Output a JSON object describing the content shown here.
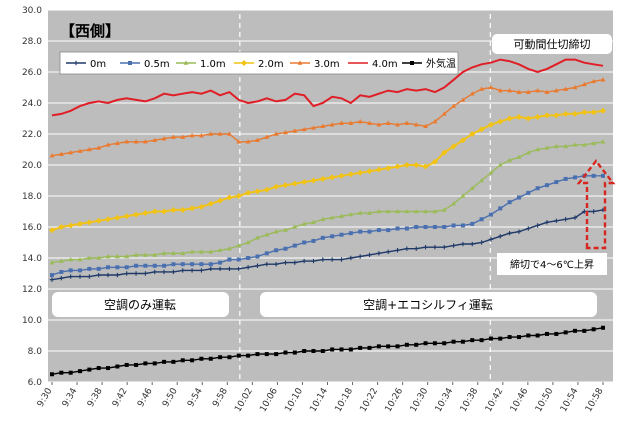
{
  "chart_data": {
    "type": "line",
    "title": "【西側】",
    "ylim": [
      6.0,
      30.0
    ],
    "y_ticks": [
      "6.0",
      "8.0",
      "10.0",
      "12.0",
      "14.0",
      "16.0",
      "18.0",
      "20.0",
      "22.0",
      "24.0",
      "26.0",
      "28.0",
      "30.0"
    ],
    "x_tick_labels": [
      "9:30",
      "9:34",
      "9:38",
      "9:42",
      "9:46",
      "9:50",
      "9:54",
      "9:58",
      "10:02",
      "10:06",
      "10:10",
      "10:14",
      "10:18",
      "10:22",
      "10:26",
      "10:30",
      "10:34",
      "10:38",
      "10:42",
      "10:46",
      "10:50",
      "10:54",
      "10:58"
    ],
    "grid": true,
    "legend_position": "top-left",
    "colors": {
      "plot_bg": "#bdbdbd",
      "panel_bg": "#ffffff",
      "grid": "#ffffff",
      "divider": "#ffffff",
      "callout_arrow": "#d7261e"
    },
    "series": [
      {
        "name": "0m",
        "color": "#1f3a68",
        "marker": "plus",
        "values": [
          12.6,
          12.7,
          12.8,
          12.8,
          12.8,
          12.9,
          12.9,
          12.9,
          13.0,
          13.0,
          13.0,
          13.1,
          13.1,
          13.1,
          13.2,
          13.2,
          13.2,
          13.3,
          13.3,
          13.3,
          13.3,
          13.4,
          13.5,
          13.6,
          13.6,
          13.7,
          13.7,
          13.8,
          13.8,
          13.9,
          13.9,
          13.9,
          14.0,
          14.1,
          14.2,
          14.3,
          14.4,
          14.5,
          14.6,
          14.6,
          14.7,
          14.7,
          14.7,
          14.8,
          14.9,
          14.9,
          15.0,
          15.2,
          15.4,
          15.6,
          15.7,
          15.9,
          16.1,
          16.3,
          16.4,
          16.5,
          16.6,
          17.0,
          17.0,
          17.1
        ]
      },
      {
        "name": "0.5m",
        "color": "#4a70b0",
        "marker": "square",
        "values": [
          12.9,
          13.1,
          13.2,
          13.2,
          13.3,
          13.3,
          13.4,
          13.4,
          13.4,
          13.5,
          13.5,
          13.5,
          13.5,
          13.6,
          13.6,
          13.6,
          13.6,
          13.6,
          13.7,
          13.9,
          13.9,
          14.0,
          14.1,
          14.3,
          14.5,
          14.6,
          14.8,
          15.0,
          15.1,
          15.3,
          15.4,
          15.5,
          15.6,
          15.7,
          15.7,
          15.8,
          15.8,
          15.9,
          15.9,
          16.0,
          16.0,
          16.0,
          16.0,
          16.1,
          16.1,
          16.2,
          16.5,
          16.8,
          17.2,
          17.6,
          17.9,
          18.2,
          18.5,
          18.7,
          18.9,
          19.1,
          19.2,
          19.3,
          19.3,
          19.3
        ]
      },
      {
        "name": "1.0m",
        "color": "#9bbb59",
        "marker": "triangle",
        "values": [
          13.7,
          13.8,
          13.9,
          13.9,
          14.0,
          14.0,
          14.1,
          14.1,
          14.1,
          14.2,
          14.2,
          14.2,
          14.3,
          14.3,
          14.3,
          14.4,
          14.4,
          14.4,
          14.5,
          14.6,
          14.8,
          15.0,
          15.3,
          15.5,
          15.7,
          15.8,
          16.0,
          16.2,
          16.3,
          16.5,
          16.6,
          16.7,
          16.8,
          16.9,
          16.9,
          17.0,
          17.0,
          17.0,
          17.0,
          17.0,
          17.0,
          17.0,
          17.1,
          17.5,
          18.0,
          18.5,
          19.0,
          19.5,
          20.0,
          20.3,
          20.5,
          20.8,
          21.0,
          21.1,
          21.2,
          21.2,
          21.3,
          21.3,
          21.4,
          21.5
        ]
      },
      {
        "name": "2.0m",
        "color": "#f2c314",
        "marker": "diamond",
        "values": [
          15.8,
          16.0,
          16.1,
          16.2,
          16.3,
          16.4,
          16.5,
          16.6,
          16.7,
          16.8,
          16.9,
          17.0,
          17.0,
          17.1,
          17.1,
          17.2,
          17.3,
          17.5,
          17.7,
          17.9,
          18.0,
          18.2,
          18.3,
          18.4,
          18.6,
          18.7,
          18.8,
          18.9,
          19.0,
          19.1,
          19.2,
          19.3,
          19.4,
          19.5,
          19.6,
          19.7,
          19.8,
          19.9,
          20.0,
          20.0,
          19.9,
          20.2,
          20.8,
          21.2,
          21.6,
          22.0,
          22.3,
          22.6,
          22.8,
          23.0,
          23.1,
          23.0,
          23.1,
          23.2,
          23.2,
          23.3,
          23.3,
          23.4,
          23.4,
          23.5
        ]
      },
      {
        "name": "3.0m",
        "color": "#e97a30",
        "marker": "triangle",
        "values": [
          20.6,
          20.7,
          20.8,
          20.9,
          21.0,
          21.1,
          21.3,
          21.4,
          21.5,
          21.5,
          21.5,
          21.6,
          21.7,
          21.8,
          21.8,
          21.9,
          21.9,
          22.0,
          22.0,
          22.0,
          21.5,
          21.5,
          21.6,
          21.8,
          22.0,
          22.1,
          22.2,
          22.3,
          22.4,
          22.5,
          22.6,
          22.7,
          22.7,
          22.8,
          22.7,
          22.6,
          22.7,
          22.6,
          22.7,
          22.6,
          22.5,
          22.8,
          23.3,
          23.8,
          24.2,
          24.6,
          24.9,
          25.0,
          24.8,
          24.8,
          24.7,
          24.7,
          24.8,
          24.7,
          24.8,
          24.9,
          25.0,
          25.2,
          25.4,
          25.5
        ]
      },
      {
        "name": "4.0m",
        "color": "#e01e26",
        "marker": "none",
        "values": [
          23.2,
          23.3,
          23.5,
          23.8,
          24.0,
          24.1,
          24.0,
          24.2,
          24.3,
          24.2,
          24.1,
          24.3,
          24.6,
          24.5,
          24.6,
          24.7,
          24.6,
          24.8,
          24.5,
          24.7,
          24.2,
          24.0,
          24.1,
          24.3,
          24.1,
          24.2,
          24.6,
          24.5,
          23.8,
          24.0,
          24.4,
          24.3,
          24.0,
          24.5,
          24.4,
          24.6,
          24.8,
          24.7,
          24.9,
          24.8,
          24.9,
          24.7,
          25.0,
          25.5,
          26.0,
          26.3,
          26.5,
          26.6,
          26.8,
          26.7,
          26.5,
          26.2,
          26.0,
          26.2,
          26.5,
          26.8,
          26.8,
          26.6,
          26.5,
          26.4
        ]
      },
      {
        "name": "外気温",
        "color": "#000000",
        "marker": "square",
        "values": [
          6.5,
          6.6,
          6.6,
          6.7,
          6.8,
          6.9,
          6.9,
          7.0,
          7.1,
          7.1,
          7.2,
          7.2,
          7.3,
          7.3,
          7.4,
          7.4,
          7.5,
          7.5,
          7.6,
          7.6,
          7.7,
          7.7,
          7.8,
          7.8,
          7.8,
          7.9,
          7.9,
          8.0,
          8.0,
          8.0,
          8.1,
          8.1,
          8.1,
          8.2,
          8.2,
          8.3,
          8.3,
          8.3,
          8.4,
          8.4,
          8.5,
          8.5,
          8.5,
          8.6,
          8.6,
          8.7,
          8.7,
          8.8,
          8.8,
          8.9,
          8.9,
          9.0,
          9.0,
          9.1,
          9.1,
          9.2,
          9.3,
          9.3,
          9.4,
          9.5
        ]
      }
    ],
    "annotations": [
      {
        "key": "mode_ac_only",
        "text": "空調のみ運転"
      },
      {
        "key": "mode_ac_plus",
        "text": "空調+エコシルフィ運転"
      },
      {
        "key": "note_stop",
        "text": "可動間仕切締切"
      },
      {
        "key": "note_rise",
        "text": "締切で4～6℃上昇"
      }
    ]
  }
}
